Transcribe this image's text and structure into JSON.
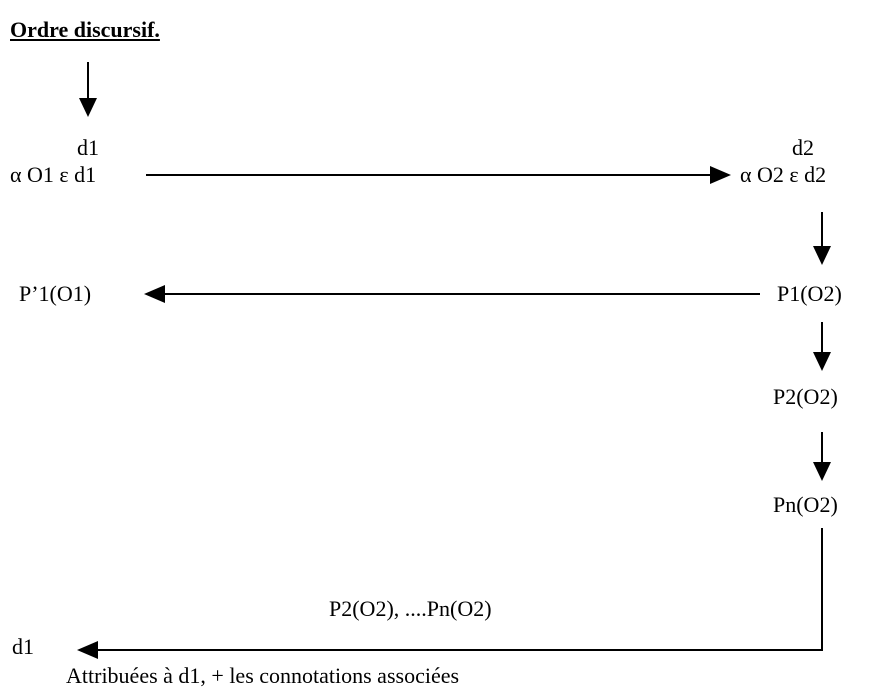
{
  "title": "Ordre discursif.",
  "nodes": {
    "d1_top": "d1",
    "alpha_o1": "α O1 ε d1",
    "d2_top": "d2",
    "alpha_o2": "α O2 ε d2",
    "p_prime_1": "P’1(O1)",
    "p1_o2": "P1(O2)",
    "p2_o2": "P2(O2)",
    "pn_o2": "Pn(O2)",
    "bottom_list": "P2(O2), ....Pn(O2)",
    "d1_bottom": "d1",
    "bottom_caption": "Attribuées à d1, + les connotations associées"
  },
  "colors": {
    "ink": "#000000",
    "background": "#ffffff"
  }
}
